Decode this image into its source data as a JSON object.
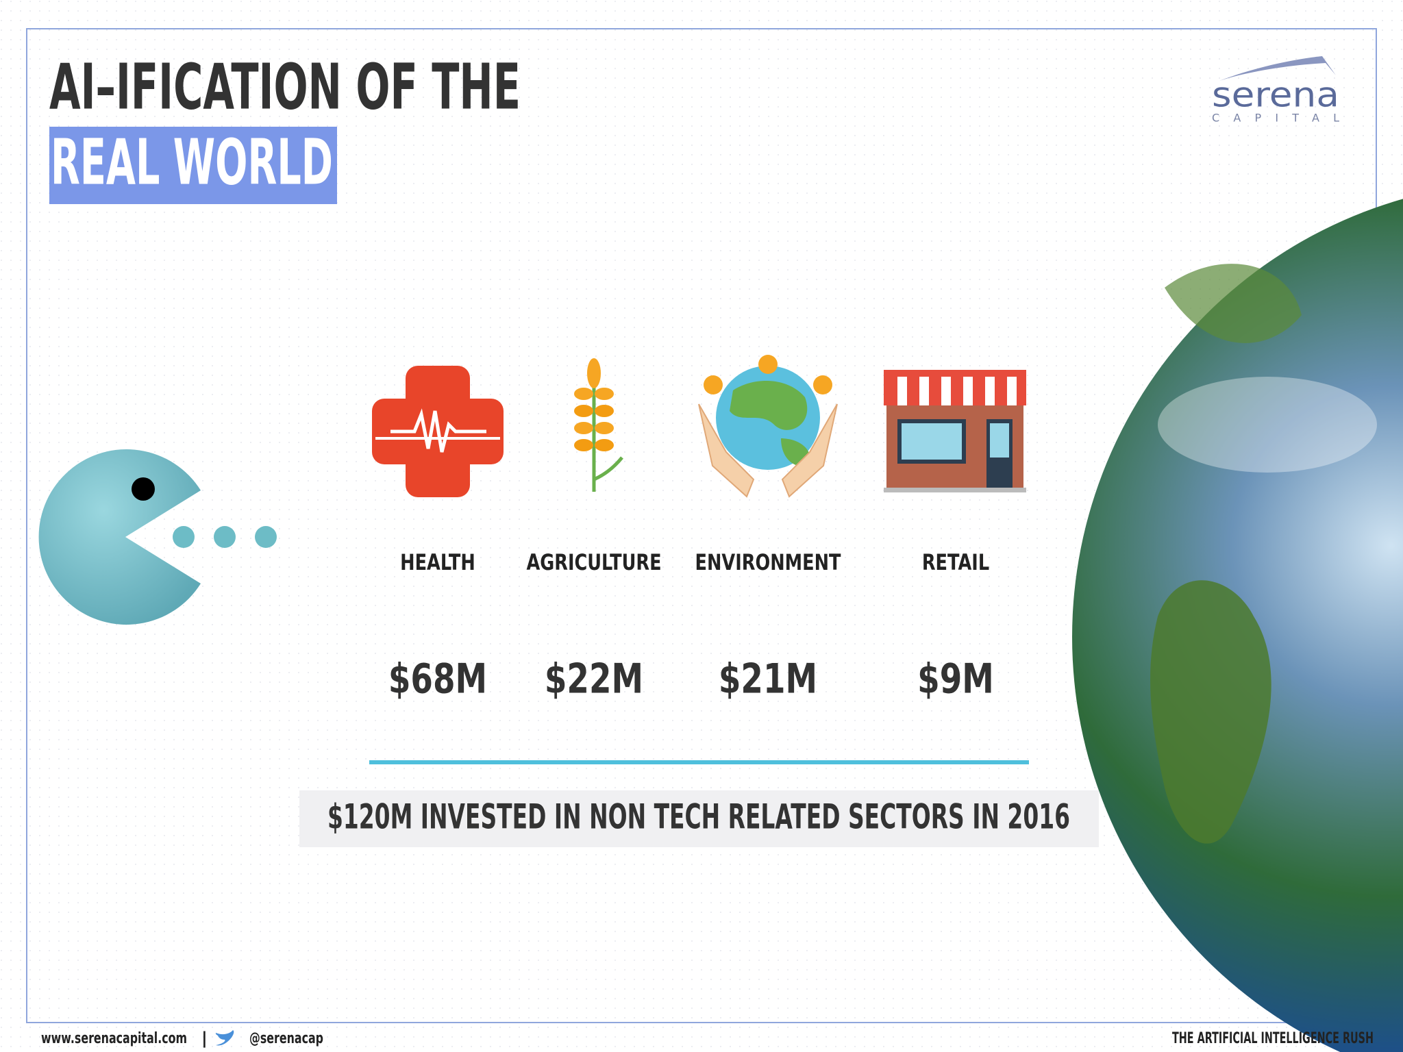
{
  "header": {
    "title_line1": "AI–IFICATION OF THE",
    "title_line2": "REAL WORLD"
  },
  "logo": {
    "name": "serena",
    "sub": "CAPITAL"
  },
  "sectors": [
    {
      "label": "HEALTH",
      "amount": "$68M"
    },
    {
      "label": "AGRICULTURE",
      "amount": "$22M"
    },
    {
      "label": "ENVIRONMENT",
      "amount": "$21M"
    },
    {
      "label": "RETAIL",
      "amount": "$9M"
    }
  ],
  "summary": "$120M INVESTED IN NON TECH RELATED SECTORS IN 2016",
  "footer": {
    "website": "www.serenacapital.com",
    "separator": "|",
    "handle": "@serenacap",
    "series": "THE ARTIFICIAL INTELLIGENCE RUSH"
  }
}
